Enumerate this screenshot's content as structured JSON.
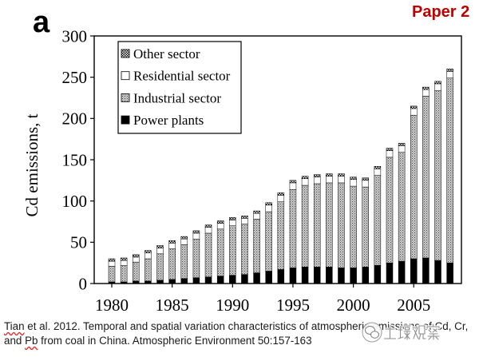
{
  "header": {
    "tag": "Paper 2"
  },
  "panel_label": "a",
  "colors": {
    "tag": "#c00000",
    "spellcheck_underline": "#e02b2b",
    "text": "#1a1a1a"
  },
  "chart_data": {
    "type": "bar",
    "stacked": true,
    "ylabel": "Cd emissions, t",
    "ylim": [
      0,
      300
    ],
    "y_ticks": [
      "0",
      "50",
      "100",
      "150",
      "200",
      "250",
      "300"
    ],
    "x": [
      1980,
      1981,
      1982,
      1983,
      1984,
      1985,
      1986,
      1987,
      1988,
      1989,
      1990,
      1991,
      1992,
      1993,
      1994,
      1995,
      1996,
      1997,
      1998,
      1999,
      2000,
      2001,
      2002,
      2003,
      2004,
      2005,
      2006,
      2007,
      2008
    ],
    "x_tick_labels": [
      "1980",
      "1985",
      "1990",
      "1995",
      "2000",
      "2005"
    ],
    "grid": false,
    "legend": {
      "position": "top-left"
    },
    "series": [
      {
        "name": "Power plants",
        "color": "#000000",
        "pattern": "solid",
        "values": [
          2,
          2,
          3,
          3,
          4,
          5,
          6,
          7,
          8,
          9,
          10,
          11,
          13,
          15,
          17,
          19,
          20,
          20,
          20,
          19,
          19,
          20,
          22,
          25,
          27,
          30,
          31,
          28,
          25
        ]
      },
      {
        "name": "Industrial sector",
        "color": "#a6a6a6",
        "pattern": "stipple",
        "values": [
          19,
          20,
          23,
          27,
          32,
          37,
          41,
          47,
          53,
          57,
          60,
          61,
          65,
          72,
          82,
          95,
          99,
          101,
          102,
          103,
          99,
          97,
          109,
          128,
          132,
          174,
          196,
          206,
          224
        ]
      },
      {
        "name": "Residential sector",
        "color": "#ffffff",
        "pattern": "solid",
        "values": [
          6,
          6,
          6,
          7,
          7,
          7,
          7,
          7,
          7,
          7,
          7,
          7,
          7,
          8,
          8,
          8,
          8,
          8,
          8,
          8,
          8,
          8,
          8,
          8,
          8,
          8,
          8,
          8,
          8
        ]
      },
      {
        "name": "Other sector",
        "color": "#000000",
        "pattern": "checker",
        "values": [
          3,
          3,
          3,
          3,
          3,
          3,
          3,
          3,
          3,
          3,
          3,
          3,
          3,
          3,
          3,
          3,
          3,
          3,
          3,
          3,
          3,
          3,
          3,
          3,
          3,
          3,
          3,
          3,
          3
        ]
      }
    ]
  },
  "caption": {
    "line1": [
      "Tian",
      " et al. 2012. Temporal and spatial variation characteristics of atmospheric emissions of Cd, Cr,"
    ],
    "line2": [
      "and ",
      "Pb",
      " from coal in China. Atmospheric Environment 50:157-163"
    ]
  },
  "watermark": {
    "text": "土壤观察",
    "icon": "wechat-icon"
  }
}
